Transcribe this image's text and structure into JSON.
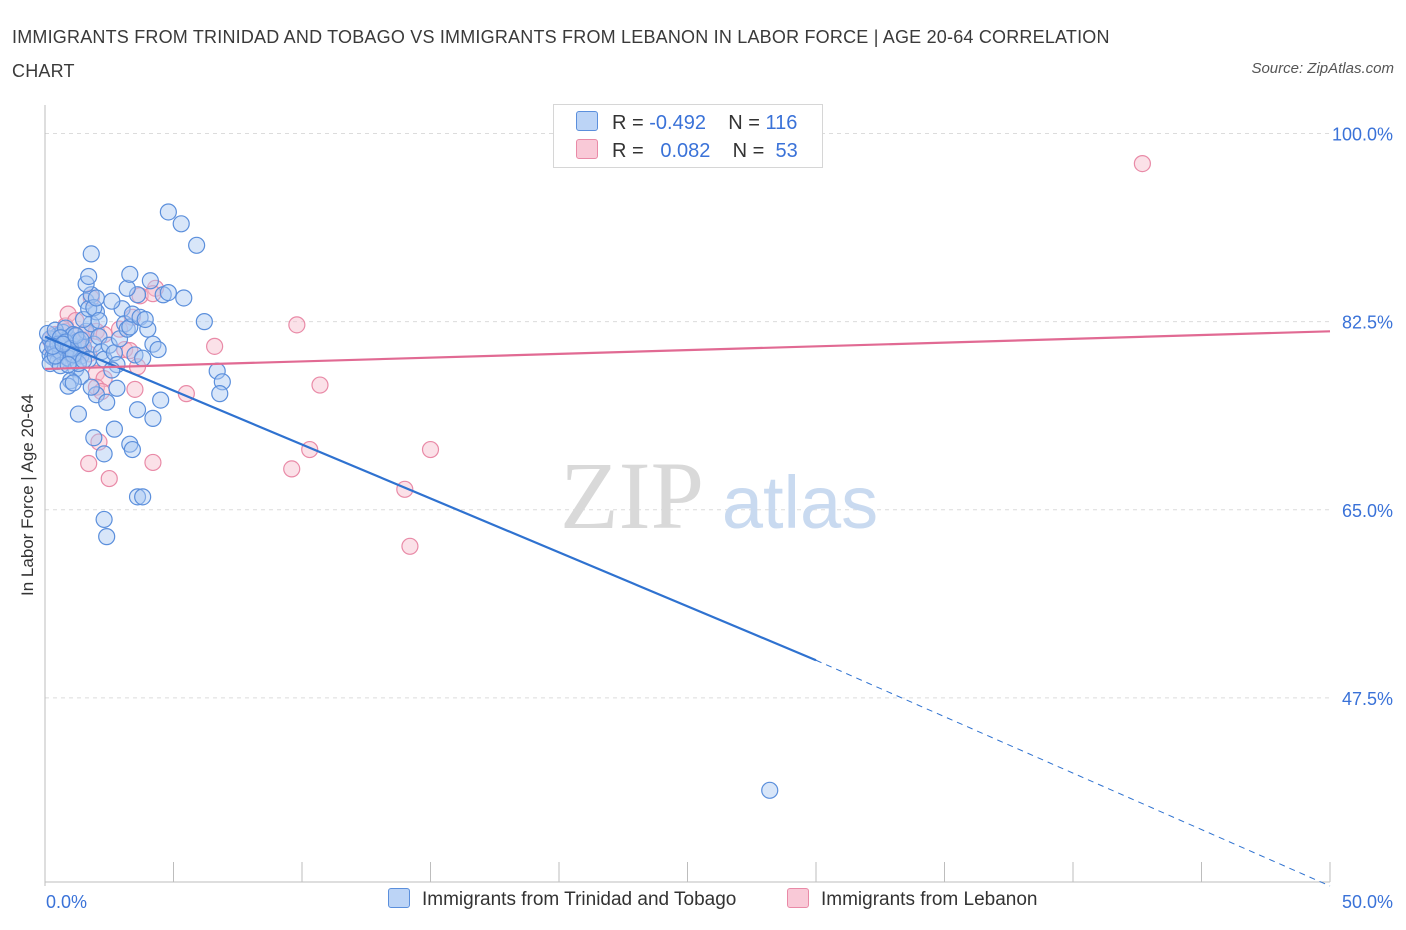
{
  "title": "IMMIGRANTS FROM TRINIDAD AND TOBAGO VS IMMIGRANTS FROM LEBANON IN LABOR FORCE | AGE 20-64 CORRELATION CHART",
  "source": "Source: ZipAtlas.com",
  "watermark": {
    "zip": "ZIP",
    "atlas": "atlas"
  },
  "legend": {
    "series1": {
      "r_label": "R =",
      "r_value": "-0.492",
      "n_label": "N =",
      "n_value": "116"
    },
    "series2": {
      "r_label": "R =",
      "r_value": "0.082",
      "n_label": "N =",
      "n_value": "53"
    }
  },
  "chart_data": {
    "type": "scatter",
    "title": "IMMIGRANTS FROM TRINIDAD AND TOBAGO VS IMMIGRANTS FROM LEBANON IN LABOR FORCE | AGE 20-64 CORRELATION CHART",
    "xlabel": "",
    "ylabel": "In Labor Force | Age 20-64",
    "xlim": [
      0,
      50
    ],
    "ylim": [
      30,
      100
    ],
    "x_tick_labels": [
      "0.0%",
      "50.0%"
    ],
    "y_tick_labels": [
      "100.0%",
      "82.5%",
      "65.0%",
      "47.5%"
    ],
    "y_ticks": [
      100,
      82.5,
      65,
      47.5
    ],
    "colors": {
      "series1_fill": "#a9c7f2",
      "series1_stroke": "#5b8fdc",
      "series1_line": "#2f72d0",
      "series2_fill": "#f7bccd",
      "series2_stroke": "#e98aa7",
      "series2_line": "#e16a93",
      "tick_label": "#3a72d8",
      "grid": "#dcdcdc"
    },
    "series": [
      {
        "name": "Immigrants from Trinidad and Tobago",
        "r": -0.492,
        "n": 116,
        "trend": {
          "x": [
            0,
            30,
            50
          ],
          "y": [
            81.1,
            51.0,
            30.0
          ]
        },
        "points": [
          [
            0.1,
            80.1
          ],
          [
            0.2,
            79.4
          ],
          [
            0.3,
            80.6
          ],
          [
            0.4,
            79.8
          ],
          [
            0.5,
            81.2
          ],
          [
            0.6,
            80.3
          ],
          [
            0.7,
            79.9
          ],
          [
            0.8,
            80.8
          ],
          [
            0.9,
            79.6
          ],
          [
            1.0,
            80.5
          ],
          [
            0.2,
            80.9
          ],
          [
            0.3,
            79.2
          ],
          [
            0.5,
            78.8
          ],
          [
            0.6,
            79.7
          ],
          [
            0.7,
            81.5
          ],
          [
            0.8,
            80.0
          ],
          [
            0.9,
            81.0
          ],
          [
            1.0,
            78.9
          ],
          [
            1.1,
            80.2
          ],
          [
            1.2,
            79.5
          ],
          [
            0.1,
            81.4
          ],
          [
            0.2,
            78.6
          ],
          [
            0.4,
            81.7
          ],
          [
            0.5,
            80.4
          ],
          [
            0.6,
            78.4
          ],
          [
            0.8,
            81.9
          ],
          [
            0.9,
            79.1
          ],
          [
            1.1,
            81.3
          ],
          [
            1.3,
            80.7
          ],
          [
            1.4,
            79.3
          ],
          [
            1.5,
            80.1
          ],
          [
            1.6,
            81.6
          ],
          [
            1.7,
            79.0
          ],
          [
            1.8,
            82.3
          ],
          [
            1.9,
            80.4
          ],
          [
            2.0,
            83.4
          ],
          [
            2.1,
            81.1
          ],
          [
            2.2,
            79.7
          ],
          [
            1.2,
            78.1
          ],
          [
            1.4,
            77.4
          ],
          [
            1.0,
            77.0
          ],
          [
            0.9,
            76.5
          ],
          [
            1.1,
            76.8
          ],
          [
            1.3,
            78.6
          ],
          [
            1.5,
            82.7
          ],
          [
            1.6,
            84.4
          ],
          [
            1.7,
            83.7
          ],
          [
            1.8,
            85.0
          ],
          [
            1.9,
            83.8
          ],
          [
            2.0,
            84.7
          ],
          [
            1.6,
            86.0
          ],
          [
            1.7,
            86.7
          ],
          [
            1.8,
            88.8
          ],
          [
            2.1,
            82.6
          ],
          [
            2.3,
            79.0
          ],
          [
            2.5,
            80.3
          ],
          [
            2.7,
            79.6
          ],
          [
            2.8,
            78.5
          ],
          [
            2.9,
            80.9
          ],
          [
            3.0,
            83.7
          ],
          [
            2.6,
            84.4
          ],
          [
            3.1,
            82.3
          ],
          [
            3.2,
            81.8
          ],
          [
            3.3,
            82.0
          ],
          [
            3.4,
            83.2
          ],
          [
            3.5,
            79.4
          ],
          [
            3.6,
            85.0
          ],
          [
            3.7,
            82.9
          ],
          [
            3.8,
            79.1
          ],
          [
            4.0,
            81.8
          ],
          [
            3.2,
            85.6
          ],
          [
            3.3,
            86.9
          ],
          [
            4.1,
            86.3
          ],
          [
            4.2,
            80.4
          ],
          [
            4.4,
            79.9
          ],
          [
            4.6,
            85.0
          ],
          [
            4.8,
            85.2
          ],
          [
            5.4,
            84.7
          ],
          [
            5.3,
            91.6
          ],
          [
            5.9,
            89.6
          ],
          [
            4.8,
            92.7
          ],
          [
            6.2,
            82.5
          ],
          [
            6.7,
            77.9
          ],
          [
            6.9,
            76.9
          ],
          [
            6.8,
            75.8
          ],
          [
            4.5,
            75.2
          ],
          [
            4.2,
            73.5
          ],
          [
            3.6,
            74.3
          ],
          [
            2.8,
            76.3
          ],
          [
            2.0,
            75.7
          ],
          [
            1.8,
            76.4
          ],
          [
            1.3,
            73.9
          ],
          [
            2.4,
            75.0
          ],
          [
            2.7,
            72.5
          ],
          [
            3.3,
            71.1
          ],
          [
            3.4,
            70.6
          ],
          [
            2.3,
            70.2
          ],
          [
            1.9,
            71.7
          ],
          [
            3.6,
            66.2
          ],
          [
            3.8,
            66.2
          ],
          [
            2.3,
            64.1
          ],
          [
            2.4,
            62.5
          ],
          [
            0.4,
            79.3
          ],
          [
            0.6,
            81.0
          ],
          [
            0.8,
            80.6
          ],
          [
            1.0,
            80.0
          ],
          [
            1.1,
            79.4
          ],
          [
            0.3,
            80.2
          ],
          [
            0.7,
            80.4
          ],
          [
            1.2,
            81.2
          ],
          [
            1.4,
            80.8
          ],
          [
            0.9,
            78.5
          ],
          [
            1.5,
            78.9
          ],
          [
            2.6,
            78.0
          ],
          [
            28.2,
            38.9
          ],
          [
            3.9,
            82.7
          ]
        ]
      },
      {
        "name": "Immigrants from Lebanon",
        "r": 0.082,
        "n": 53,
        "trend": {
          "x": [
            0,
            50
          ],
          "y": [
            78.1,
            81.6
          ]
        },
        "points": [
          [
            0.2,
            80.8
          ],
          [
            0.3,
            79.9
          ],
          [
            0.4,
            81.3
          ],
          [
            0.5,
            80.2
          ],
          [
            0.6,
            79.6
          ],
          [
            0.7,
            80.9
          ],
          [
            0.8,
            81.6
          ],
          [
            0.9,
            80.4
          ],
          [
            1.0,
            79.7
          ],
          [
            1.1,
            80.6
          ],
          [
            0.3,
            80.3
          ],
          [
            0.5,
            81.0
          ],
          [
            0.7,
            79.3
          ],
          [
            0.9,
            80.0
          ],
          [
            1.2,
            81.2
          ],
          [
            1.3,
            80.5
          ],
          [
            1.4,
            79.8
          ],
          [
            1.5,
            80.8
          ],
          [
            1.6,
            81.4
          ],
          [
            1.7,
            79.5
          ],
          [
            0.8,
            82.1
          ],
          [
            0.9,
            83.2
          ],
          [
            1.2,
            82.6
          ],
          [
            1.8,
            84.7
          ],
          [
            2.0,
            81.6
          ],
          [
            2.3,
            81.3
          ],
          [
            2.9,
            81.8
          ],
          [
            3.1,
            79.9
          ],
          [
            3.4,
            82.9
          ],
          [
            3.7,
            84.9
          ],
          [
            4.3,
            85.6
          ],
          [
            4.2,
            85.1
          ],
          [
            3.3,
            79.8
          ],
          [
            3.6,
            78.3
          ],
          [
            2.0,
            77.7
          ],
          [
            2.3,
            77.2
          ],
          [
            2.0,
            76.4
          ],
          [
            2.2,
            76.0
          ],
          [
            3.5,
            76.2
          ],
          [
            5.5,
            75.8
          ],
          [
            6.6,
            80.2
          ],
          [
            9.8,
            82.2
          ],
          [
            10.7,
            76.6
          ],
          [
            10.3,
            70.6
          ],
          [
            9.6,
            68.8
          ],
          [
            15.0,
            70.6
          ],
          [
            14.0,
            66.9
          ],
          [
            14.2,
            61.6
          ],
          [
            2.1,
            71.3
          ],
          [
            1.7,
            69.3
          ],
          [
            2.5,
            67.9
          ],
          [
            4.2,
            69.4
          ],
          [
            42.7,
            97.2
          ]
        ]
      }
    ]
  },
  "bottom_legend": {
    "series1_label": "Immigrants from Trinidad and Tobago",
    "series2_label": "Immigrants from Lebanon"
  }
}
